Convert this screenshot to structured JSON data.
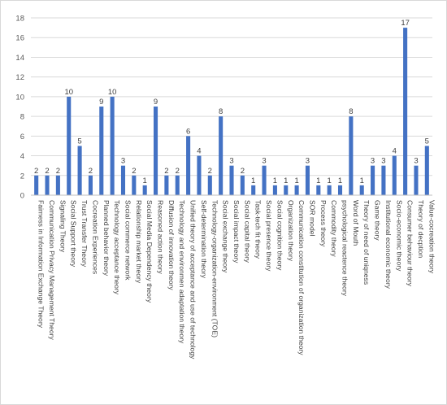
{
  "chart_data": {
    "type": "bar",
    "title": "",
    "xlabel": "",
    "ylabel": "",
    "ylim": [
      0,
      18
    ],
    "ytick_step": 2,
    "grid": true,
    "legend": "none",
    "bar_color": "#4472C4",
    "categories": [
      "Fairness in Information Exchange Theory",
      "Communication Privacy Management Theory",
      "Signaling Theory",
      "Social Support theory",
      "Trust Transfer Theory",
      "Cocreation Experiences",
      "Planned behavior theory",
      "Technology acceptance theory",
      "Social commerce network",
      "Relationship market theory",
      "Social Media Dependency theory",
      "Reasoned action theory",
      "Diffusion of innovation theory",
      "Technology and environmen adaptation theory",
      "Unified theory of acceptance and use of technology",
      "Self-determination theory",
      "Technology-organization-environment (TOE)",
      "Social exchange theory",
      "Social impact theory",
      "Social capital theory",
      "Task-tech fit theory",
      "Social presence theory",
      "Social cognition theory",
      "Organization theory",
      "Communication constitution of organization theory",
      "SOR model",
      "Process theory",
      "Commodity theory",
      "psychological reactence theory",
      "Word of Mouth",
      "Theory of need of uniqness",
      "Game theory",
      "Institutional economic theory",
      "Socio-economic theory",
      "Consumer behaviour theory",
      "Theory of decption",
      "Value-cocreation theory"
    ],
    "values": [
      2,
      2,
      2,
      10,
      5,
      2,
      9,
      10,
      3,
      2,
      1,
      9,
      2,
      2,
      6,
      4,
      2,
      8,
      3,
      2,
      1,
      3,
      1,
      1,
      1,
      3,
      1,
      1,
      1,
      8,
      1,
      3,
      3,
      4,
      17,
      3,
      5
    ]
  }
}
